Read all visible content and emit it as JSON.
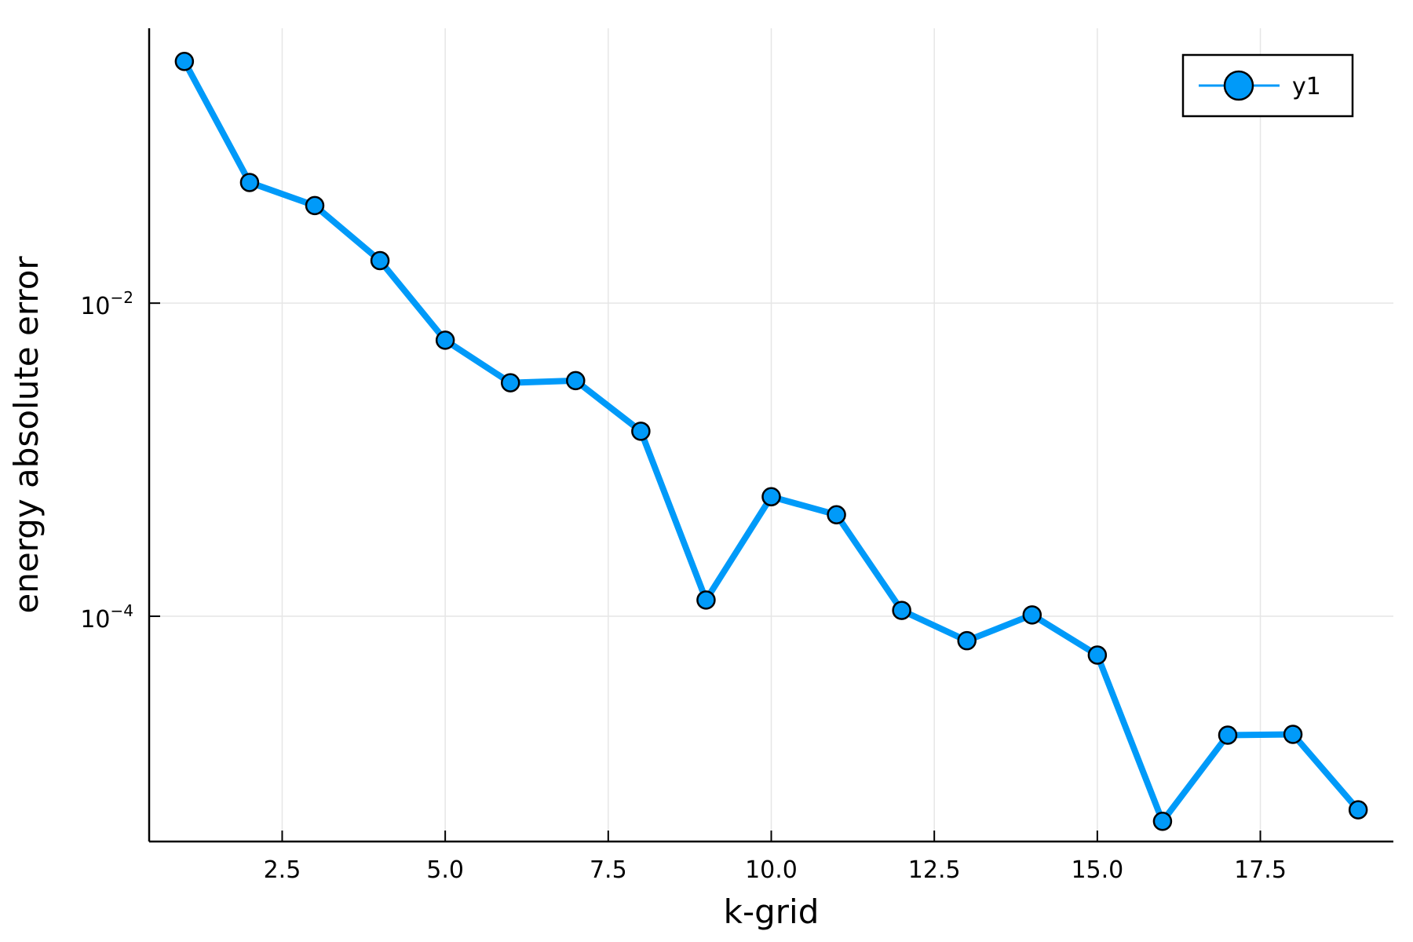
{
  "chart_data": {
    "type": "line",
    "title": "",
    "xlabel": "k-grid",
    "ylabel": "energy absolute error",
    "x_ticks": [
      "2.5",
      "5.0",
      "7.5",
      "10.0",
      "12.5",
      "15.0",
      "17.5"
    ],
    "x_tick_values": [
      2.5,
      5.0,
      7.5,
      10.0,
      12.5,
      15.0,
      17.5
    ],
    "y_ticks": [
      {
        "base": "10",
        "exp": "−2",
        "value": 0.01
      },
      {
        "base": "10",
        "exp": "−4",
        "value": 0.0001
      }
    ],
    "xlim": [
      0.46,
      19.54
    ],
    "ylim": [
      3.64e-06,
      0.57
    ],
    "y_scale": "log",
    "grid": true,
    "legend": {
      "position": "top-right",
      "entries": [
        "y1"
      ]
    },
    "series": [
      {
        "name": "y1",
        "color": "#009af9",
        "marker": "circle",
        "x": [
          1,
          2,
          3,
          4,
          5,
          6,
          7,
          8,
          9,
          10,
          11,
          12,
          13,
          14,
          15,
          16,
          17,
          18,
          19
        ],
        "y": [
          0.35,
          0.059,
          0.042,
          0.0187,
          0.0058,
          0.0031,
          0.0032,
          0.00152,
          0.000127,
          0.00058,
          0.000445,
          0.000109,
          6.98e-05,
          0.000102,
          5.65e-05,
          4.9e-06,
          1.74e-05,
          1.76e-05,
          5.8e-06
        ]
      }
    ]
  }
}
